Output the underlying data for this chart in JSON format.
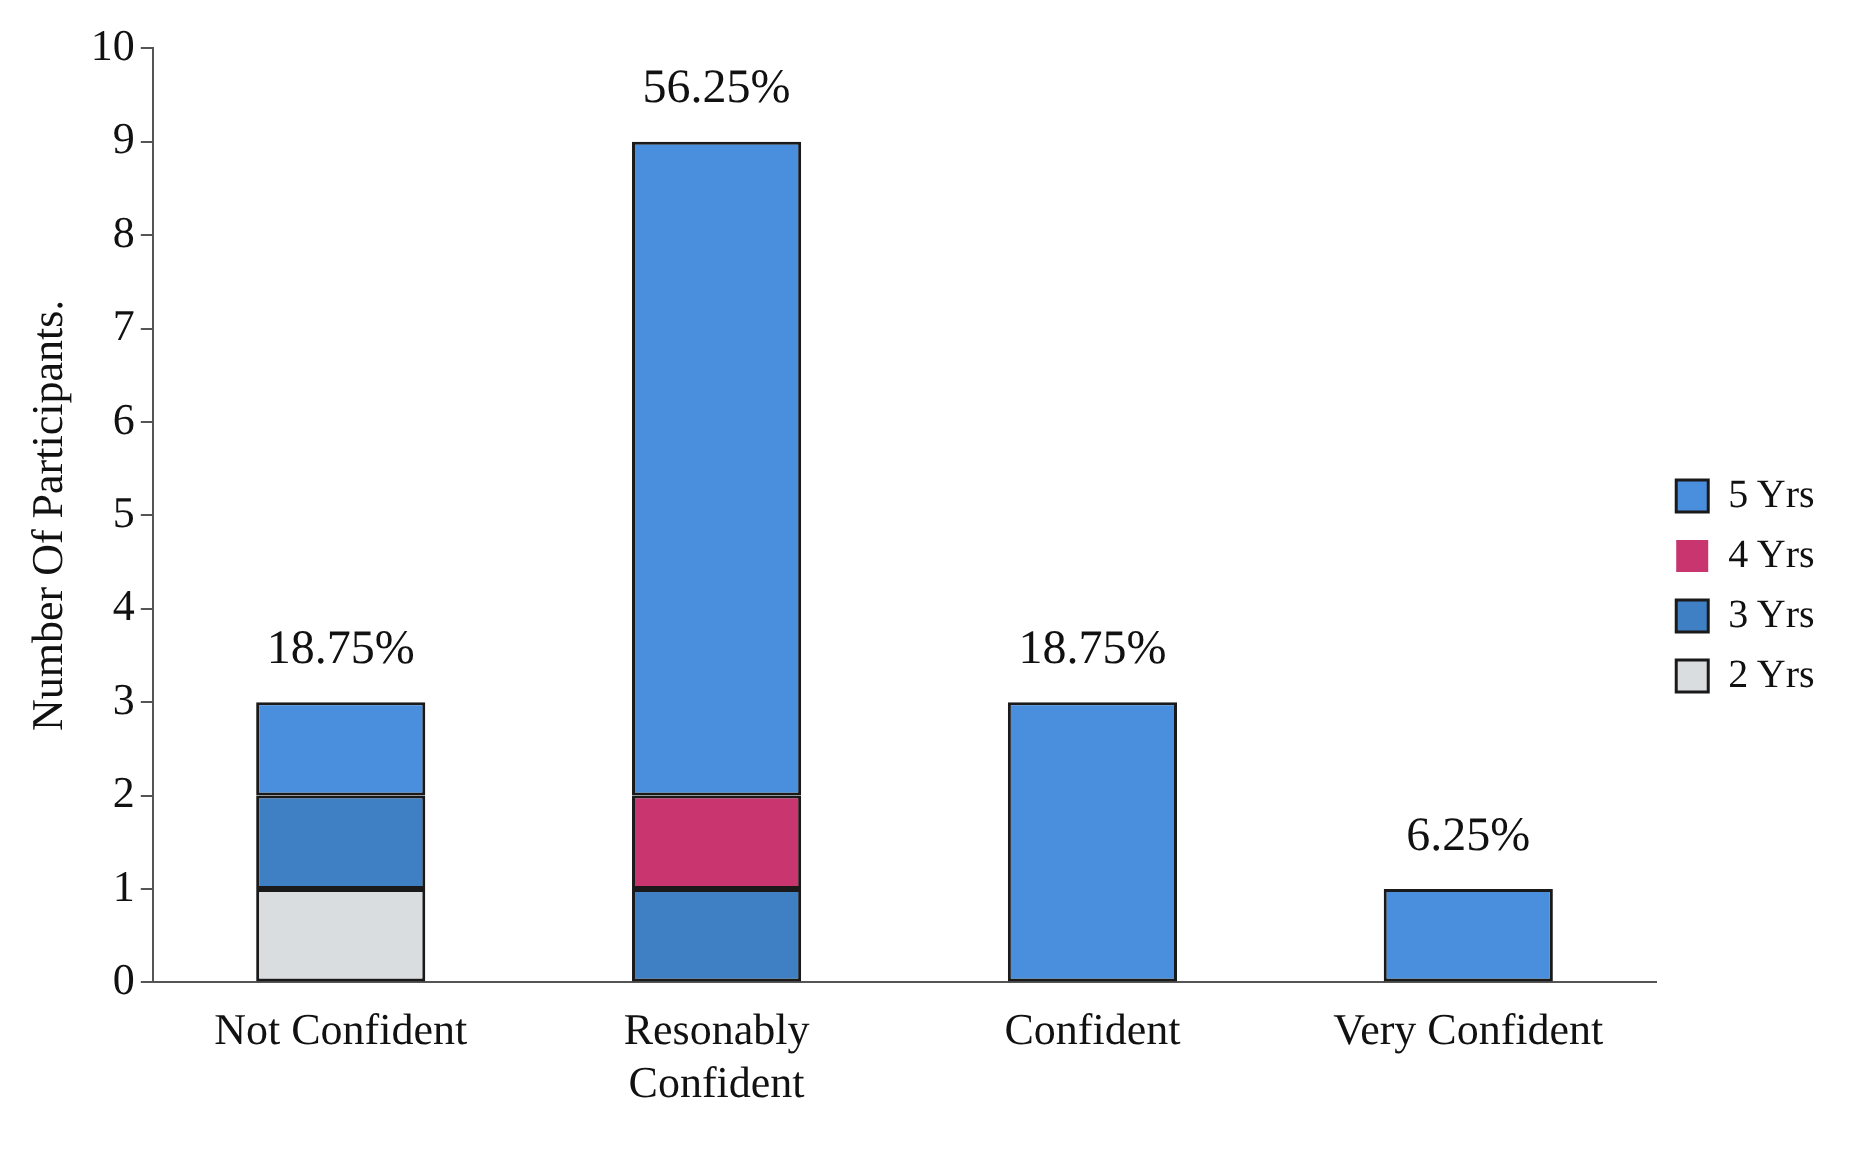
{
  "chart_data": {
    "type": "bar",
    "stacked": true,
    "ylabel": "Number Of Participants.",
    "categories": [
      "Not Confident",
      "Resonably Confident",
      "Confident",
      "Very Confident"
    ],
    "series": [
      {
        "name": "2 Yrs",
        "color": "#d9dde0",
        "values": [
          1,
          0,
          0,
          0
        ]
      },
      {
        "name": "3 Yrs",
        "color": "#3f7fc4",
        "values": [
          1,
          1,
          0,
          0
        ]
      },
      {
        "name": "4 Yrs",
        "color": "#c8356f",
        "values": [
          0,
          1,
          0,
          0
        ]
      },
      {
        "name": "5 Yrs",
        "color": "#4a8fde",
        "values": [
          1,
          7,
          3,
          1
        ]
      }
    ],
    "annotations": [
      {
        "text": "18.75%",
        "x": "Not Confident",
        "y": 3
      },
      {
        "text": "56.25%",
        "x": "Resonably Confident",
        "y": 9
      },
      {
        "text": "18.75%",
        "x": "Confident",
        "y": 3
      },
      {
        "text": "6.25%",
        "x": "Very Confident",
        "y": 1
      }
    ],
    "ylim": [
      0,
      10
    ],
    "yticks": [
      0,
      1,
      2,
      3,
      4,
      5,
      6,
      7,
      8,
      9,
      10
    ],
    "grid": false,
    "legend": "right"
  }
}
